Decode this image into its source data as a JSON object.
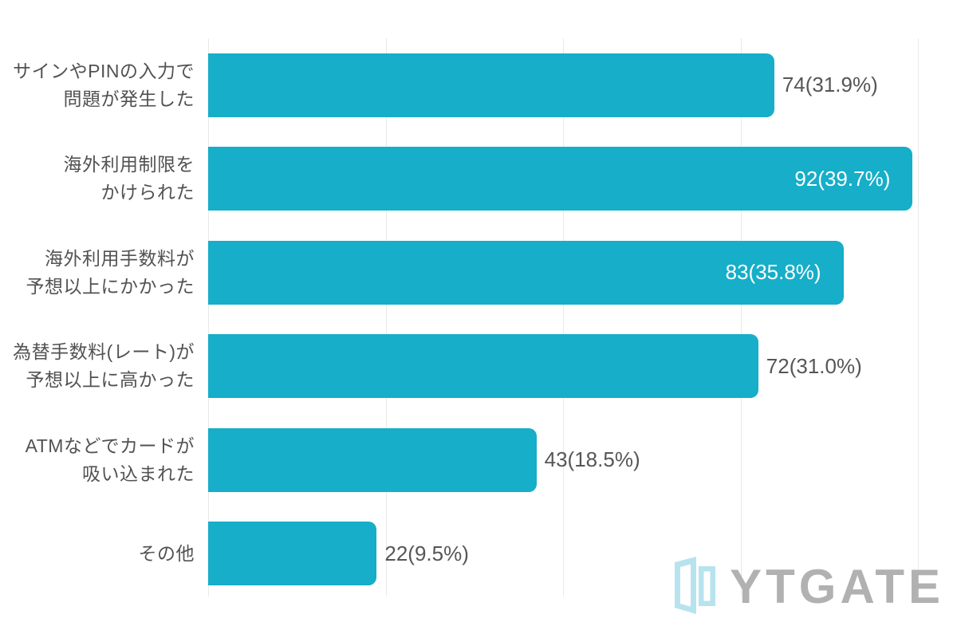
{
  "chart_data": {
    "type": "bar",
    "orientation": "horizontal",
    "title": "",
    "xlabel": "",
    "ylabel": "",
    "x_unit": "percent",
    "xlim": [
      0,
      42.2
    ],
    "gridlines_pct": [
      0,
      10,
      20,
      30,
      40
    ],
    "grid": "vertical-faint",
    "legend": "none",
    "bar_color": "#16aec8",
    "category_label_color": "#525252",
    "value_label_color": "#565656",
    "value_label_color_inside": "#ffffff",
    "categories": [
      "サインやPINの入力で問題が発生した",
      "海外利用制限をかけられた",
      "海外利用手数料が予想以上にかかった",
      "為替手数料(レート)が予想以上に高かった",
      "ATMなどでカードが吸い込まれた",
      "その他"
    ],
    "values": [
      74,
      92,
      83,
      72,
      43,
      22
    ],
    "percentages": [
      31.9,
      39.7,
      35.8,
      31.0,
      18.5,
      9.5
    ],
    "rows": [
      {
        "label_lines": [
          "サインやPINの入力で",
          "問題が発生した"
        ],
        "value": 74,
        "pct": 31.9,
        "display": "74(31.9%)",
        "label_inside": false
      },
      {
        "label_lines": [
          "海外利用制限を",
          "かけられた"
        ],
        "value": 92,
        "pct": 39.7,
        "display": "92(39.7%)",
        "label_inside": true
      },
      {
        "label_lines": [
          "海外利用手数料が",
          "予想以上にかかった"
        ],
        "value": 83,
        "pct": 35.8,
        "display": "83(35.8%)",
        "label_inside": true
      },
      {
        "label_lines": [
          "為替手数料(レート)が",
          "予想以上に高かった"
        ],
        "value": 72,
        "pct": 31.0,
        "display": "72(31.0%)",
        "label_inside": false
      },
      {
        "label_lines": [
          "ATMなどでカードが",
          "吸い込まれた"
        ],
        "value": 43,
        "pct": 18.5,
        "display": "43(18.5%)",
        "label_inside": false
      },
      {
        "label_lines": [
          "その他"
        ],
        "value": 22,
        "pct": 9.5,
        "display": "22(9.5%)",
        "label_inside": false
      }
    ]
  },
  "watermark": {
    "text": "YTGATE",
    "text_color": "#b1b1b1",
    "icon": "open-gate-icon",
    "icon_color": "#b7e3ee"
  }
}
